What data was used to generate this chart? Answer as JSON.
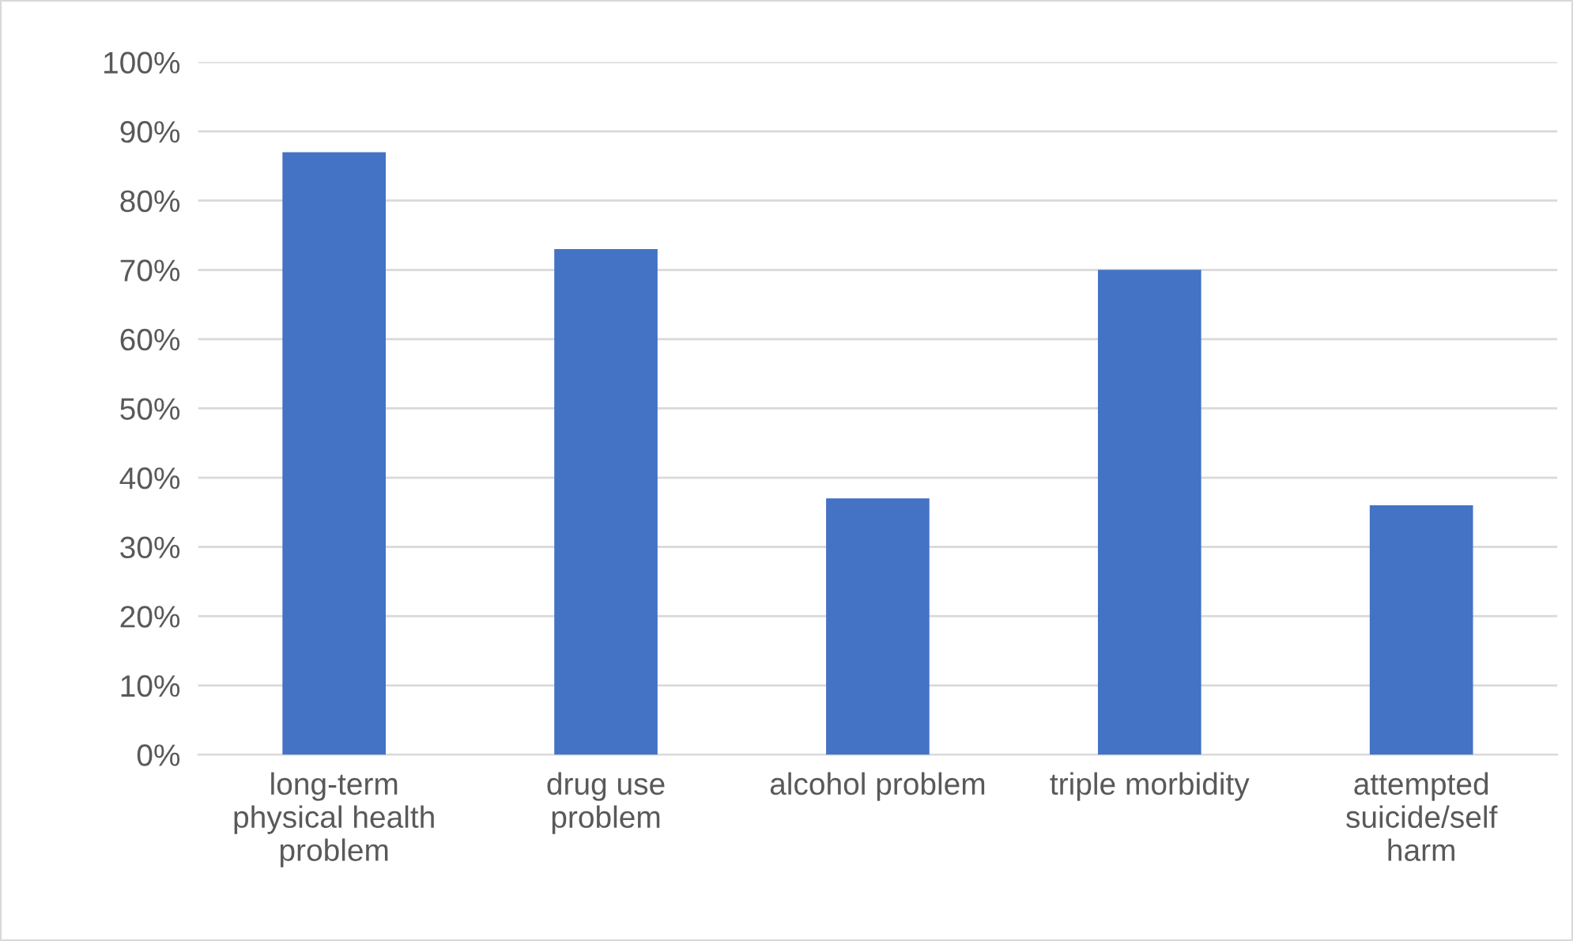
{
  "chart_data": {
    "type": "bar",
    "categories": [
      "long-term\nphysical health\nproblem",
      "drug use\nproblem",
      "alcohol problem",
      "triple morbidity",
      "attempted\nsuicide/self\nharm"
    ],
    "values": [
      87,
      73,
      37,
      70,
      36
    ],
    "color": "#4472c4",
    "ylim": [
      0,
      100
    ],
    "yticks": [
      {
        "value": 0,
        "label": "0%"
      },
      {
        "value": 10,
        "label": "10%"
      },
      {
        "value": 20,
        "label": "20%"
      },
      {
        "value": 30,
        "label": "30%"
      },
      {
        "value": 40,
        "label": "40%"
      },
      {
        "value": 50,
        "label": "50%"
      },
      {
        "value": 60,
        "label": "60%"
      },
      {
        "value": 70,
        "label": "70%"
      },
      {
        "value": 80,
        "label": "80%"
      },
      {
        "value": 90,
        "label": "90%"
      },
      {
        "value": 100,
        "label": "100%"
      }
    ],
    "grid": "y"
  }
}
